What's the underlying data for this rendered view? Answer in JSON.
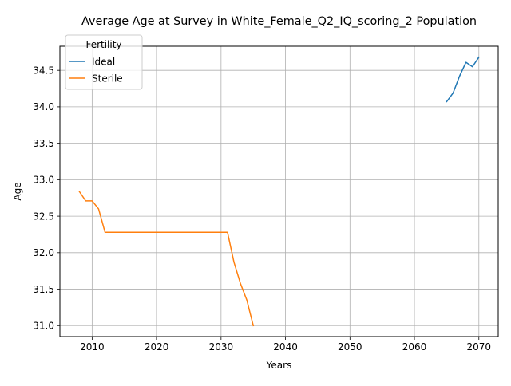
{
  "chart_data": {
    "type": "line",
    "title": "Average Age at Survey in White_Female_Q2_IQ_scoring_2 Population",
    "xlabel": "Years",
    "ylabel": "Age",
    "xlim": [
      2005,
      2073
    ],
    "ylim": [
      30.85,
      34.83
    ],
    "xticks": [
      2010,
      2020,
      2030,
      2040,
      2050,
      2060,
      2070
    ],
    "xtick_labels": [
      "2010",
      "2020",
      "2030",
      "2040",
      "2050",
      "2060",
      "2070"
    ],
    "yticks": [
      31.0,
      31.5,
      32.0,
      32.5,
      33.0,
      33.5,
      34.0,
      34.5
    ],
    "ytick_labels": [
      "31.0",
      "31.5",
      "32.0",
      "32.5",
      "33.0",
      "33.5",
      "34.0",
      "34.5"
    ],
    "grid": true,
    "legend": {
      "title": "Fertility",
      "placement": "top-left"
    },
    "series": [
      {
        "name": "Ideal",
        "color": "#1f77b4",
        "x": [
          2065,
          2066,
          2067,
          2068,
          2069,
          2070
        ],
        "y": [
          34.07,
          34.19,
          34.42,
          34.61,
          34.55,
          34.68
        ]
      },
      {
        "name": "Sterile",
        "color": "#ff7f0e",
        "x": [
          2008,
          2009,
          2010,
          2011,
          2012,
          2013,
          2014,
          2015,
          2016,
          2017,
          2018,
          2019,
          2020,
          2021,
          2022,
          2023,
          2024,
          2025,
          2026,
          2027,
          2028,
          2029,
          2030,
          2031,
          2032,
          2033,
          2034,
          2035
        ],
        "y": [
          32.84,
          32.71,
          32.71,
          32.6,
          32.28,
          32.28,
          32.28,
          32.28,
          32.28,
          32.28,
          32.28,
          32.28,
          32.28,
          32.28,
          32.28,
          32.28,
          32.28,
          32.28,
          32.28,
          32.28,
          32.28,
          32.28,
          32.28,
          32.28,
          31.87,
          31.58,
          31.35,
          31.0
        ]
      }
    ]
  }
}
